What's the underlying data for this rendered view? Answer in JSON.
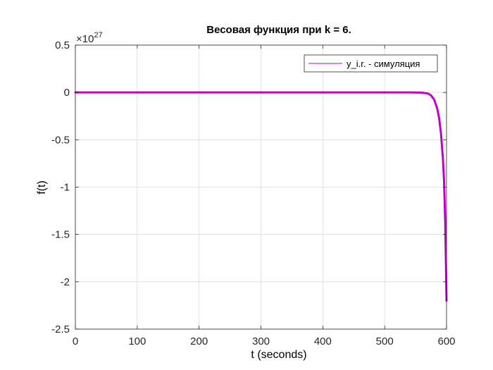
{
  "chart_data": {
    "type": "line",
    "title": "Весовая функция при k = 6.",
    "xlabel": "t (seconds)",
    "ylabel": "f(t)",
    "y_exponent_label": "×10",
    "y_exponent_power": "27",
    "y_scale": 1e+27,
    "xlim": [
      0,
      600
    ],
    "ylim": [
      -2.5,
      0.5
    ],
    "xticks": [
      0,
      100,
      200,
      300,
      400,
      500,
      600
    ],
    "yticks": [
      -2.5,
      -2,
      -1.5,
      -1,
      -0.5,
      0,
      0.5
    ],
    "xtick_labels": [
      "0",
      "100",
      "200",
      "300",
      "400",
      "500",
      "600"
    ],
    "ytick_labels": [
      "-2.5",
      "-2",
      "-1.5",
      "-1",
      "-0.5",
      "0",
      "0.5"
    ],
    "grid": true,
    "legend_position": "top-right",
    "series": [
      {
        "name": "y_i.r. - симуляция",
        "color": "#c000c8",
        "x": [
          0,
          100,
          200,
          300,
          400,
          500,
          520,
          540,
          550,
          560,
          570,
          575,
          580,
          585,
          588,
          591,
          594,
          596,
          598,
          600
        ],
        "y": [
          0,
          0,
          0,
          0,
          0,
          0,
          0,
          -0.0001,
          -0.0004,
          -0.0015,
          -0.012,
          -0.03,
          -0.075,
          -0.17,
          -0.27,
          -0.43,
          -0.68,
          -0.93,
          -1.4,
          -2.2
        ]
      }
    ]
  }
}
